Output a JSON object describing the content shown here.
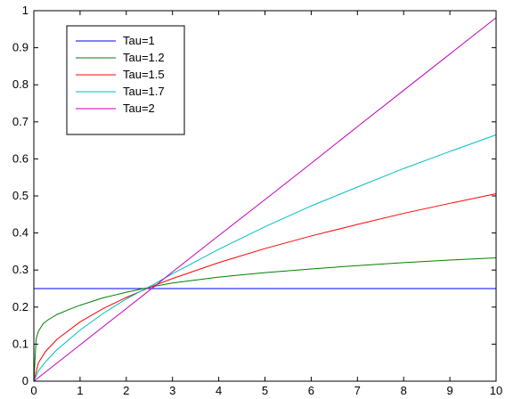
{
  "chart_data": {
    "type": "line",
    "title": "",
    "xlabel": "",
    "ylabel": "",
    "xlim": [
      0,
      10
    ],
    "ylim": [
      0,
      1
    ],
    "xticks": [
      "0",
      "1",
      "2",
      "3",
      "4",
      "5",
      "6",
      "7",
      "8",
      "9",
      "10"
    ],
    "yticks": [
      "0",
      "0.1",
      "0.2",
      "0.3",
      "0.4",
      "0.5",
      "0.6",
      "0.7",
      "0.8",
      "0.9",
      "1"
    ],
    "grid": false,
    "legend_position": "top-left",
    "series": [
      {
        "name": "Tau=1",
        "color": "#0000ff",
        "x": [
          0,
          0.1,
          0.5,
          1,
          2,
          2.6,
          3,
          4,
          5,
          6,
          7,
          8,
          9,
          10
        ],
        "y": [
          0.25,
          0.25,
          0.25,
          0.25,
          0.25,
          0.25,
          0.25,
          0.25,
          0.25,
          0.25,
          0.25,
          0.25,
          0.25,
          0.25
        ]
      },
      {
        "name": "Tau=1.2",
        "color": "#008000",
        "x": [
          0,
          0.05,
          0.1,
          0.2,
          0.3,
          0.5,
          0.75,
          1,
          1.5,
          2,
          2.6,
          3,
          4,
          5,
          6,
          7,
          8,
          9,
          10
        ],
        "y": [
          0,
          0.115,
          0.135,
          0.155,
          0.165,
          0.18,
          0.193,
          0.205,
          0.225,
          0.24,
          0.256,
          0.265,
          0.281,
          0.293,
          0.303,
          0.312,
          0.32,
          0.327,
          0.333
        ]
      },
      {
        "name": "Tau=1.5",
        "color": "#ff0000",
        "x": [
          0,
          0.1,
          0.25,
          0.5,
          1,
          1.5,
          2,
          2.6,
          3,
          4,
          5,
          6,
          7,
          8,
          9,
          10
        ],
        "y": [
          0,
          0.05,
          0.08,
          0.113,
          0.16,
          0.196,
          0.226,
          0.258,
          0.277,
          0.32,
          0.358,
          0.392,
          0.423,
          0.453,
          0.48,
          0.506
        ]
      },
      {
        "name": "Tau=1.7",
        "color": "#00bfbf",
        "x": [
          0,
          0.1,
          0.25,
          0.5,
          1,
          1.5,
          2,
          2.6,
          3,
          4,
          5,
          6,
          7,
          8,
          9,
          10
        ],
        "y": [
          0,
          0.028,
          0.052,
          0.085,
          0.138,
          0.183,
          0.222,
          0.262,
          0.29,
          0.356,
          0.417,
          0.473,
          0.524,
          0.574,
          0.62,
          0.665
        ]
      },
      {
        "name": "Tau=2",
        "color": "#bf00bf",
        "x": [
          0,
          1,
          2,
          2.6,
          3,
          4,
          5,
          6,
          7,
          8,
          9,
          10
        ],
        "y": [
          0,
          0.098,
          0.196,
          0.255,
          0.295,
          0.393,
          0.49,
          0.588,
          0.687,
          0.785,
          0.883,
          0.981
        ]
      }
    ]
  }
}
